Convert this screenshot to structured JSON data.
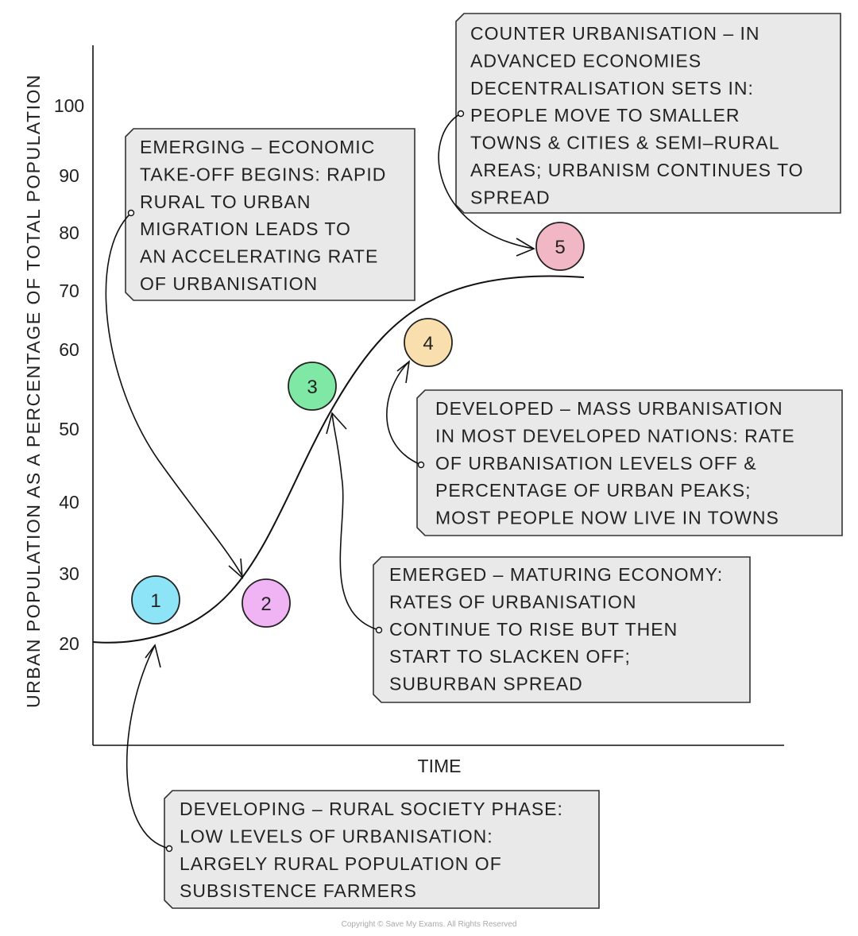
{
  "axes": {
    "y_label": "URBAN POPULATION AS A PERCENTAGE OF TOTAL POPULATION",
    "x_label": "TIME",
    "y_ticks": [
      "100",
      "90",
      "80",
      "70",
      "60",
      "50",
      "40",
      "30",
      "20"
    ]
  },
  "stages": [
    {
      "number": "1",
      "color": "#8ee4f7"
    },
    {
      "number": "2",
      "color": "#f0b4f5"
    },
    {
      "number": "3",
      "color": "#7fe8a5"
    },
    {
      "number": "4",
      "color": "#f9dfae"
    },
    {
      "number": "5",
      "color": "#f2b7c4"
    }
  ],
  "boxes": {
    "emerging": [
      "EMERGING – ECONOMIC",
      "TAKE-OFF BEGINS: RAPID",
      "RURAL TO URBAN",
      "MIGRATION LEADS TO",
      "AN ACCELERATING RATE",
      "OF URBANISATION"
    ],
    "counter": [
      "COUNTER URBANISATION – IN",
      "ADVANCED ECONOMIES",
      "DECENTRALISATION SETS IN:",
      "PEOPLE MOVE TO SMALLER",
      "TOWNS & CITIES & SEMI–RURAL",
      "AREAS; URBANISM CONTINUES TO",
      "SPREAD"
    ],
    "developed": [
      "DEVELOPED – MASS URBANISATION",
      "IN MOST DEVELOPED NATIONS: RATE",
      "OF URBANISATION LEVELS OFF &",
      "PERCENTAGE OF URBAN PEAKS;",
      "MOST PEOPLE NOW LIVE IN TOWNS"
    ],
    "emerged": [
      "EMERGED – MATURING ECONOMY:",
      "RATES OF URBANISATION",
      "CONTINUE TO RISE BUT THEN",
      "START TO SLACKEN OFF;",
      "SUBURBAN SPREAD"
    ],
    "developing": [
      "DEVELOPING – RURAL SOCIETY PHASE:",
      "LOW LEVELS OF URBANISATION:",
      "LARGELY RURAL POPULATION OF",
      "SUBSISTENCE FARMERS"
    ]
  },
  "copyright": "Copyright © Save My Exams. All Rights Reserved"
}
